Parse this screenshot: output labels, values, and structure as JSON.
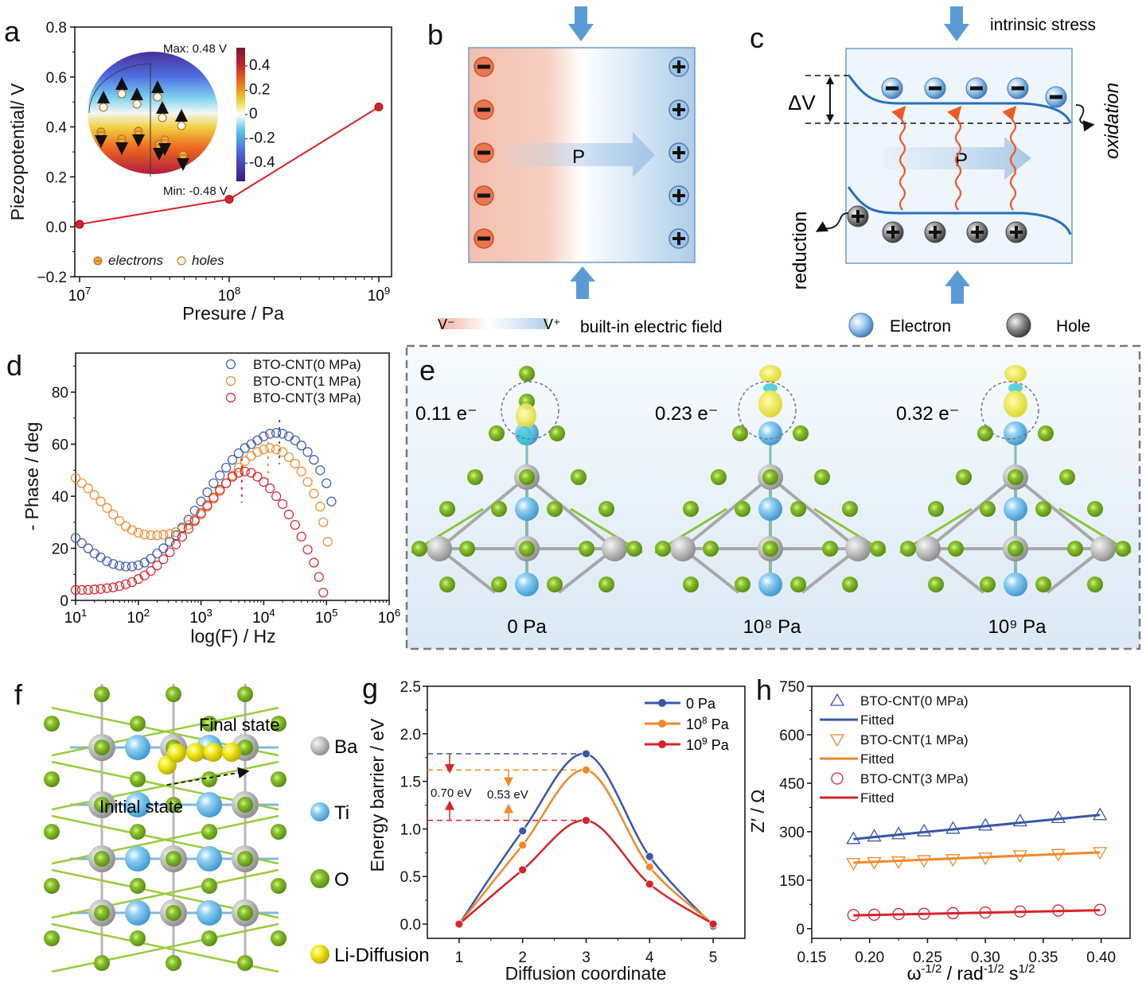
{
  "panels": {
    "a": {
      "label": "a"
    },
    "b": {
      "label": "b",
      "polarization_label": "P",
      "legend_v_minus": "V⁻",
      "legend_v_plus": "V⁺",
      "legend_text": "built-in electric field",
      "negative_charges": 5,
      "positive_charges": 5
    },
    "c": {
      "label": "c",
      "top_label": "intrinsic stress",
      "delta_label": "ΔV",
      "polarization_label": "P",
      "oxidation_label": "oxidation",
      "reduction_label": "reduction",
      "legend_electron": "Electron",
      "legend_hole": "Hole"
    },
    "d": {
      "label": "d"
    },
    "e": {
      "label": "e",
      "structures": [
        {
          "charge": "0.11 e⁻",
          "pressure": "0 Pa"
        },
        {
          "charge": "0.23 e⁻",
          "pressure": "10⁸ Pa"
        },
        {
          "charge": "0.32 e⁻",
          "pressure": "10⁹ Pa"
        }
      ]
    },
    "f": {
      "label": "f",
      "final_state": "Final state",
      "initial_state": "Initial state",
      "legend": [
        {
          "name": "Ba",
          "color": "#9a9a9a"
        },
        {
          "name": "Ti",
          "color": "#5bb4e5"
        },
        {
          "name": "O",
          "color": "#76b51b"
        },
        {
          "name": "Li-Diffusion",
          "color": "#f2ea1c"
        }
      ]
    },
    "g": {
      "label": "g"
    },
    "h": {
      "label": "h"
    }
  },
  "colors": {
    "blue": "#3a57a7",
    "orange": "#f0892a",
    "red": "#d6232a",
    "arrow_blue": "#5b9bd5",
    "wave": "#ef5a24"
  },
  "chart_data": [
    {
      "id": "a",
      "type": "line",
      "title": "",
      "xlabel": "Presure / Pa",
      "ylabel": "Piezopotential/ V",
      "xscale": "log",
      "xlim": [
        10000000.0,
        1000000000.0
      ],
      "ylim": [
        -0.2,
        0.8
      ],
      "xticks": [
        {
          "v": 10000000.0,
          "base": "10",
          "exp": "7"
        },
        {
          "v": 100000000.0,
          "base": "10",
          "exp": "8"
        },
        {
          "v": 1000000000.0,
          "base": "10",
          "exp": "9"
        }
      ],
      "yticks": [
        "-0.2",
        "0.0",
        "0.2",
        "0.4",
        "0.6",
        "0.8"
      ],
      "x": [
        10000000.0,
        100000000.0,
        1000000000.0
      ],
      "series": [
        {
          "name": "Piezopotential",
          "values": [
            0.01,
            0.11,
            0.48
          ],
          "color": "#d6232a"
        }
      ],
      "inset": {
        "max_label": "Max: 0.48 V",
        "min_label": "Min: -0.48 V",
        "colorbar_ticks": [
          "0.4",
          "0.2",
          "0",
          "-0.2",
          "-0.4"
        ],
        "colorbar_range": [
          -0.55,
          0.55
        ],
        "legend": [
          "electrons",
          "holes"
        ]
      }
    },
    {
      "id": "d",
      "type": "scatter",
      "title": "",
      "xlabel": "log(F) / Hz",
      "ylabel": "- Phase / deg",
      "xscale": "log",
      "xlim": [
        1,
        6
      ],
      "ylim": [
        0,
        95
      ],
      "xticks": [
        {
          "v": 1,
          "base": "10",
          "exp": "1"
        },
        {
          "v": 2,
          "base": "10",
          "exp": "2"
        },
        {
          "v": 3,
          "base": "10",
          "exp": "3"
        },
        {
          "v": 4,
          "base": "10",
          "exp": "4"
        },
        {
          "v": 5,
          "base": "10",
          "exp": "5"
        },
        {
          "v": 6,
          "base": "10",
          "exp": "6"
        }
      ],
      "yticks": [
        "0",
        "20",
        "40",
        "60",
        "80"
      ],
      "legend_position": "top-right",
      "series": [
        {
          "name": "BTO-CNT(0 MPa)",
          "color": "#3a57a7",
          "peak_log_f": 4.25,
          "points": [
            [
              1.0,
              24
            ],
            [
              1.1,
              22
            ],
            [
              1.2,
              20
            ],
            [
              1.3,
              18
            ],
            [
              1.4,
              16.5
            ],
            [
              1.5,
              15
            ],
            [
              1.6,
              14
            ],
            [
              1.7,
              13.3
            ],
            [
              1.8,
              13
            ],
            [
              1.9,
              13
            ],
            [
              2.0,
              13.5
            ],
            [
              2.1,
              14.5
            ],
            [
              2.2,
              16
            ],
            [
              2.3,
              18
            ],
            [
              2.4,
              20
            ],
            [
              2.5,
              22.5
            ],
            [
              2.6,
              25
            ],
            [
              2.7,
              28
            ],
            [
              2.8,
              31
            ],
            [
              2.9,
              34.5
            ],
            [
              3.0,
              38
            ],
            [
              3.1,
              41.5
            ],
            [
              3.2,
              45
            ],
            [
              3.3,
              48
            ],
            [
              3.4,
              51
            ],
            [
              3.5,
              54
            ],
            [
              3.6,
              56.5
            ],
            [
              3.7,
              58.5
            ],
            [
              3.8,
              60
            ],
            [
              3.9,
              61.5
            ],
            [
              4.0,
              63
            ],
            [
              4.1,
              64
            ],
            [
              4.2,
              64.3
            ],
            [
              4.3,
              64
            ],
            [
              4.4,
              63
            ],
            [
              4.5,
              61.5
            ],
            [
              4.6,
              59.5
            ],
            [
              4.7,
              57
            ],
            [
              4.8,
              54
            ],
            [
              4.9,
              50
            ],
            [
              5.0,
              45
            ],
            [
              5.08,
              38
            ]
          ]
        },
        {
          "name": "BTO-CNT(1 MPa)",
          "color": "#f0892a",
          "peak_log_f": 4.07,
          "points": [
            [
              1.0,
              47
            ],
            [
              1.1,
              45
            ],
            [
              1.2,
              43
            ],
            [
              1.3,
              40.5
            ],
            [
              1.4,
              38
            ],
            [
              1.5,
              35.5
            ],
            [
              1.6,
              33
            ],
            [
              1.7,
              30.5
            ],
            [
              1.8,
              28.5
            ],
            [
              1.9,
              27
            ],
            [
              2.0,
              26
            ],
            [
              2.1,
              25.3
            ],
            [
              2.2,
              25
            ],
            [
              2.3,
              25
            ],
            [
              2.4,
              25.2
            ],
            [
              2.5,
              25.5
            ],
            [
              2.6,
              26.2
            ],
            [
              2.7,
              27.5
            ],
            [
              2.8,
              29
            ],
            [
              2.9,
              31
            ],
            [
              3.0,
              33
            ],
            [
              3.1,
              36
            ],
            [
              3.2,
              39
            ],
            [
              3.3,
              42
            ],
            [
              3.4,
              45
            ],
            [
              3.5,
              48
            ],
            [
              3.6,
              51
            ],
            [
              3.7,
              53.5
            ],
            [
              3.8,
              55.5
            ],
            [
              3.9,
              57
            ],
            [
              4.0,
              58
            ],
            [
              4.1,
              58.5
            ],
            [
              4.2,
              58
            ],
            [
              4.3,
              57
            ],
            [
              4.4,
              55
            ],
            [
              4.5,
              52.5
            ],
            [
              4.6,
              49.5
            ],
            [
              4.7,
              45.5
            ],
            [
              4.8,
              41
            ],
            [
              4.9,
              36
            ],
            [
              4.95,
              30
            ],
            [
              5.02,
              22.5
            ]
          ]
        },
        {
          "name": "BTO-CNT(3 MPa)",
          "color": "#d6232a",
          "peak_log_f": 3.65,
          "points": [
            [
              1.0,
              4
            ],
            [
              1.1,
              4
            ],
            [
              1.2,
              4
            ],
            [
              1.3,
              4.2
            ],
            [
              1.4,
              4.4
            ],
            [
              1.5,
              4.7
            ],
            [
              1.6,
              5
            ],
            [
              1.7,
              5.5
            ],
            [
              1.8,
              6.2
            ],
            [
              1.9,
              7
            ],
            [
              2.0,
              8.2
            ],
            [
              2.1,
              9.6
            ],
            [
              2.2,
              11.3
            ],
            [
              2.3,
              13.4
            ],
            [
              2.4,
              15.8
            ],
            [
              2.5,
              18.5
            ],
            [
              2.6,
              21.5
            ],
            [
              2.7,
              24.5
            ],
            [
              2.8,
              27.5
            ],
            [
              2.9,
              30.5
            ],
            [
              3.0,
              33.5
            ],
            [
              3.1,
              36.5
            ],
            [
              3.2,
              39.5
            ],
            [
              3.3,
              42.5
            ],
            [
              3.4,
              45
            ],
            [
              3.5,
              47.5
            ],
            [
              3.6,
              49
            ],
            [
              3.7,
              49.5
            ],
            [
              3.8,
              49
            ],
            [
              3.9,
              47.5
            ],
            [
              4.0,
              45.5
            ],
            [
              4.1,
              43
            ],
            [
              4.2,
              40
            ],
            [
              4.3,
              37
            ],
            [
              4.4,
              33
            ],
            [
              4.5,
              29
            ],
            [
              4.6,
              24.5
            ],
            [
              4.7,
              19.5
            ],
            [
              4.8,
              14.5
            ],
            [
              4.88,
              9
            ],
            [
              4.95,
              3
            ]
          ]
        }
      ]
    },
    {
      "id": "g",
      "type": "line",
      "title": "",
      "xlabel": "Diffusion coordinate",
      "ylabel": "Energy barrier / eV",
      "xlim": [
        0.5,
        5.5
      ],
      "ylim": [
        -0.15,
        2.5
      ],
      "xticks": [
        "1",
        "2",
        "3",
        "4",
        "5"
      ],
      "yticks": [
        "0.0",
        "0.5",
        "1.0",
        "1.5",
        "2.0",
        "2.5"
      ],
      "x": [
        1,
        2,
        3,
        4,
        5
      ],
      "legend_position": "top-right",
      "series": [
        {
          "name": "0 Pa",
          "base": "0 Pa",
          "exp": "",
          "color": "#3a57a7",
          "values": [
            0.0,
            0.98,
            1.79,
            0.71,
            -0.02
          ]
        },
        {
          "name": "10^8 Pa",
          "base": "10",
          "exp": "8",
          "suffix": " Pa",
          "color": "#f0892a",
          "values": [
            0.0,
            0.83,
            1.62,
            0.6,
            0.0
          ]
        },
        {
          "name": "10^9 Pa",
          "base": "10",
          "exp": "9",
          "suffix": " Pa",
          "color": "#d6232a",
          "values": [
            0.0,
            0.57,
            1.09,
            0.42,
            0.0
          ]
        }
      ],
      "annotations": [
        {
          "text": "0.70 eV",
          "from": 1.79,
          "to": 1.09,
          "color": "#d6232a"
        },
        {
          "text": "0.53 eV",
          "from": 1.62,
          "to": 1.09,
          "color": "#f0892a"
        }
      ]
    },
    {
      "id": "h",
      "type": "scatter",
      "title": "",
      "xlabel": "ω^-1/2 / rad^-1/2 s^1/2",
      "ylabel": "Z′ / Ω",
      "xlim": [
        0.15,
        0.425
      ],
      "ylim": [
        -30,
        750
      ],
      "xticks": [
        "0.15",
        "0.20",
        "0.25",
        "0.30",
        "0.35",
        "0.40"
      ],
      "yticks": [
        "0",
        "150",
        "300",
        "450",
        "600",
        "750"
      ],
      "x": [
        0.186,
        0.204,
        0.225,
        0.247,
        0.272,
        0.3,
        0.33,
        0.363,
        0.399
      ],
      "legend_position": "top-left",
      "series": [
        {
          "name": "BTO-CNT(0 MPa)",
          "marker": "triangle-up",
          "color": "#3a57a7",
          "values": [
            278,
            286,
            293,
            302,
            310,
            320,
            333,
            343,
            352
          ],
          "fit": {
            "label": "Fitted",
            "y0": 277,
            "y1": 352
          }
        },
        {
          "name": "BTO-CNT(1 MPa)",
          "marker": "triangle-down",
          "color": "#f0892a",
          "values": [
            202,
            205,
            207,
            211,
            214,
            219,
            226,
            230,
            236
          ],
          "fit": {
            "label": "Fitted",
            "y0": 204,
            "y1": 236
          }
        },
        {
          "name": "BTO-CNT(3 MPa)",
          "marker": "circle",
          "color": "#d6232a",
          "values": [
            42,
            43,
            45,
            46,
            48,
            50,
            53,
            56,
            58
          ],
          "fit": {
            "label": "Fitted",
            "y0": 41,
            "y1": 57
          }
        }
      ]
    }
  ]
}
